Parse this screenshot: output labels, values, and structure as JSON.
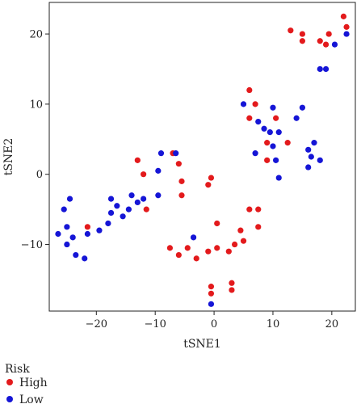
{
  "chart_data": {
    "type": "scatter",
    "xlabel": "tSNE1",
    "ylabel": "tSNE2",
    "xlim": [
      -28,
      24
    ],
    "ylim": [
      -19.5,
      24.5
    ],
    "xticks": [
      -20,
      -10,
      0,
      10,
      20
    ],
    "yticks": [
      -10,
      0,
      10,
      20
    ],
    "grid": false,
    "legend": {
      "title": "Risk",
      "position": "bottom-left"
    },
    "series": [
      {
        "name": "High",
        "color": "#e31a1c",
        "points": [
          [
            -21.5,
            -7.5
          ],
          [
            -13,
            2
          ],
          [
            -12,
            0
          ],
          [
            -11.5,
            -5
          ],
          [
            -7,
            3
          ],
          [
            -6,
            1.5
          ],
          [
            -5.5,
            -1
          ],
          [
            -5.5,
            -3
          ],
          [
            -7.5,
            -10.5
          ],
          [
            -6,
            -11.5
          ],
          [
            -4.5,
            -10.5
          ],
          [
            -3,
            -12
          ],
          [
            -1,
            -11
          ],
          [
            -1,
            -1.5
          ],
          [
            -0.5,
            -0.5
          ],
          [
            0.5,
            -7
          ],
          [
            0.5,
            -10.5
          ],
          [
            2.5,
            -11
          ],
          [
            3.5,
            -10
          ],
          [
            4.5,
            -8
          ],
          [
            5,
            -9.5
          ],
          [
            6,
            -5
          ],
          [
            7.5,
            -5
          ],
          [
            7.5,
            -7.5
          ],
          [
            3,
            -15.5
          ],
          [
            3,
            -16.5
          ],
          [
            -0.5,
            -16
          ],
          [
            -0.5,
            -17
          ],
          [
            6,
            12
          ],
          [
            6,
            8
          ],
          [
            7,
            10
          ],
          [
            9,
            4.5
          ],
          [
            9,
            2
          ],
          [
            10.5,
            8
          ],
          [
            12.5,
            4.5
          ],
          [
            13,
            20.5
          ],
          [
            15,
            20
          ],
          [
            15,
            19
          ],
          [
            18,
            19
          ],
          [
            19,
            18.5
          ],
          [
            19.5,
            20
          ],
          [
            22,
            22.5
          ],
          [
            22.5,
            21
          ]
        ]
      },
      {
        "name": "Low",
        "color": "#1515d6",
        "points": [
          [
            -26.5,
            -8.5
          ],
          [
            -25.5,
            -5
          ],
          [
            -25,
            -7.5
          ],
          [
            -25,
            -10
          ],
          [
            -24.5,
            -3.5
          ],
          [
            -24,
            -9
          ],
          [
            -23.5,
            -11.5
          ],
          [
            -22,
            -12
          ],
          [
            -21.5,
            -8.5
          ],
          [
            -19.5,
            -8
          ],
          [
            -18,
            -7
          ],
          [
            -17.5,
            -5.5
          ],
          [
            -17.5,
            -3.5
          ],
          [
            -16.5,
            -4.5
          ],
          [
            -15.5,
            -6
          ],
          [
            -14.5,
            -5
          ],
          [
            -14,
            -3
          ],
          [
            -13,
            -4
          ],
          [
            -12,
            -3.5
          ],
          [
            -9.5,
            -3
          ],
          [
            -9.5,
            0.5
          ],
          [
            -9,
            3
          ],
          [
            -6.5,
            3
          ],
          [
            -3.5,
            -9
          ],
          [
            -0.5,
            -18.5
          ],
          [
            5,
            10
          ],
          [
            7,
            3
          ],
          [
            7.5,
            7.5
          ],
          [
            8.5,
            6.5
          ],
          [
            9.5,
            6
          ],
          [
            10,
            9.5
          ],
          [
            10,
            4
          ],
          [
            10.5,
            2
          ],
          [
            11,
            -0.5
          ],
          [
            11,
            6
          ],
          [
            14,
            8
          ],
          [
            15,
            9.5
          ],
          [
            16,
            3.5
          ],
          [
            16,
            1
          ],
          [
            16.5,
            2.5
          ],
          [
            17,
            4.5
          ],
          [
            18,
            2
          ],
          [
            18,
            15
          ],
          [
            19,
            15
          ],
          [
            20.5,
            18.5
          ],
          [
            22.5,
            20
          ]
        ]
      }
    ]
  }
}
